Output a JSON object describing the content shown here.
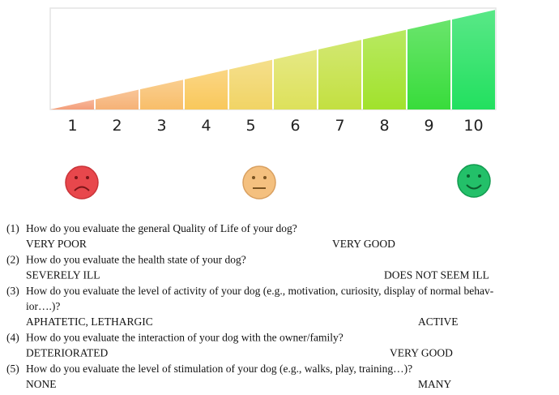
{
  "scale": {
    "labels": [
      "1",
      "2",
      "3",
      "4",
      "5",
      "6",
      "7",
      "8",
      "9",
      "10"
    ]
  },
  "questions": [
    {
      "number": "(1)",
      "lines": [
        "How do you evaluate the general Quality of Life of your dog?"
      ],
      "low": "VERY POOR",
      "high": "VERY GOOD"
    },
    {
      "number": "(2)",
      "lines": [
        "How do you evaluate the health state of your dog?"
      ],
      "low": "SEVERELY ILL",
      "high": "DOES NOT SEEM ILL"
    },
    {
      "number": "(3)",
      "lines": [
        "How do you evaluate the level of activity of your dog (e.g., motivation, curiosity, display of normal behav-",
        "ior….)?"
      ],
      "low": "APHATETIC, LETHARGIC",
      "high": "ACTIVE"
    },
    {
      "number": "(4)",
      "lines": [
        "How do you evaluate the interaction of your dog with the owner/family?"
      ],
      "low": "DETERIORATED",
      "high": "VERY GOOD"
    },
    {
      "number": "(5)",
      "lines": [
        "How do you evaluate the level of stimulation of your dog (e.g., walks, play, training…)?"
      ],
      "low": "NONE",
      "high": "MANY"
    }
  ]
}
